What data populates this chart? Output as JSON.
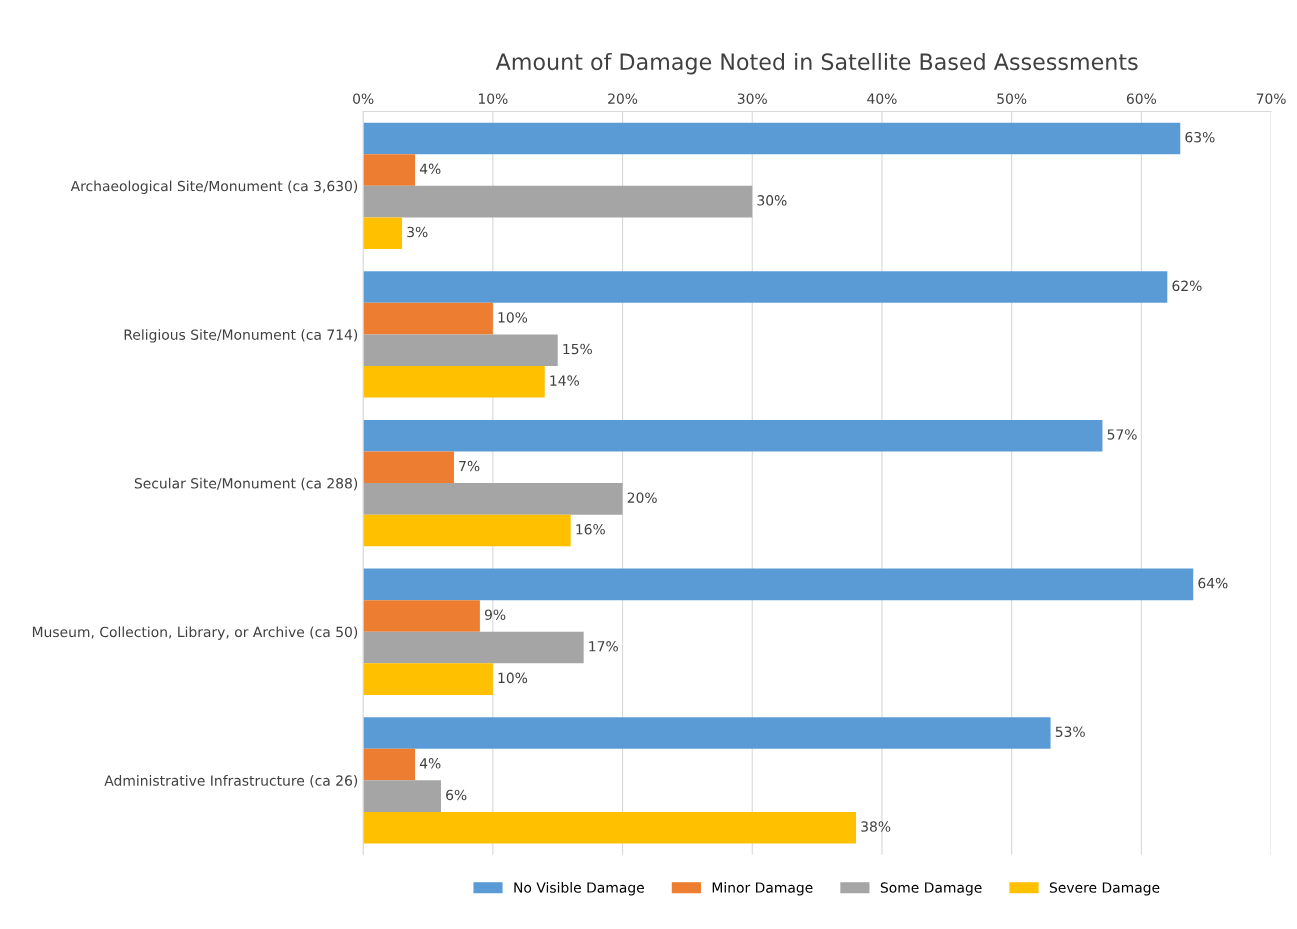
{
  "chart_data": {
    "type": "bar",
    "orientation": "horizontal",
    "title": "Amount of Damage Noted in Satellite Based Assessments",
    "categories": [
      "Archaeological Site/Monument (ca 3,630)",
      "Religious Site/Monument (ca 714)",
      "Secular Site/Monument (ca 288)",
      "Museum, Collection, Library, or Archive (ca 50)",
      "Administrative Infrastructure (ca 26)"
    ],
    "series": [
      {
        "name": "No Visible Damage",
        "color": "#5b9bd5",
        "values": [
          63,
          62,
          57,
          64,
          53
        ],
        "value_labels": [
          "63%",
          "62%",
          "57%",
          "64%",
          "53%"
        ]
      },
      {
        "name": "Minor Damage",
        "color": "#ed7d31",
        "values": [
          4,
          10,
          7,
          9,
          4
        ],
        "value_labels": [
          "4%",
          "10%",
          "7%",
          "9%",
          "4%"
        ]
      },
      {
        "name": "Some Damage",
        "color": "#a5a5a5",
        "values": [
          30,
          15,
          20,
          17,
          6
        ],
        "value_labels": [
          "30%",
          "15%",
          "20%",
          "17%",
          "6%"
        ]
      },
      {
        "name": "Severe Damage",
        "color": "#ffc000",
        "values": [
          3,
          14,
          16,
          10,
          38
        ],
        "value_labels": [
          "3%",
          "14%",
          "16%",
          "10%",
          "38%"
        ]
      }
    ],
    "xlim": [
      0,
      70
    ],
    "xticks": [
      {
        "value": 0,
        "label": "0%"
      },
      {
        "value": 10,
        "label": "10%"
      },
      {
        "value": 20,
        "label": "20%"
      },
      {
        "value": 30,
        "label": "30%"
      },
      {
        "value": 40,
        "label": "40%"
      },
      {
        "value": 50,
        "label": "50%"
      },
      {
        "value": 60,
        "label": "60%"
      },
      {
        "value": 70,
        "label": "70%"
      }
    ],
    "grid": "x",
    "legend": "bottom"
  }
}
